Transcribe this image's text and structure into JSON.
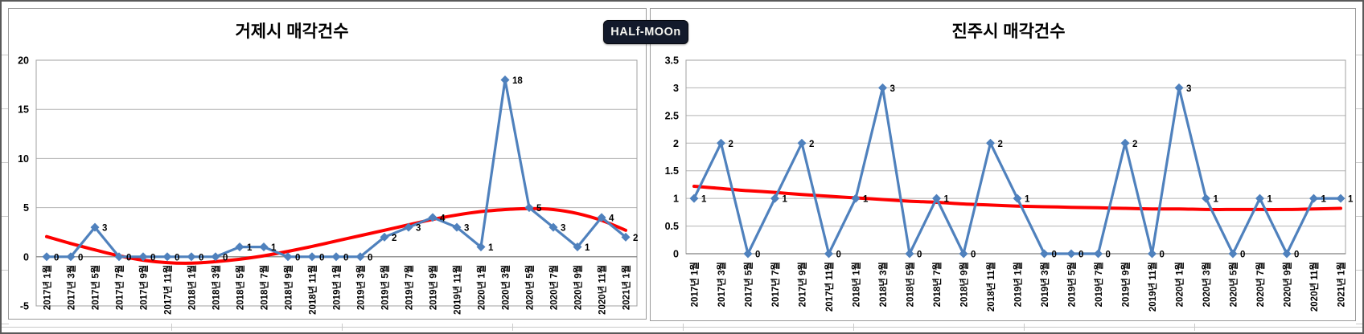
{
  "badge": {
    "label": "HALf-MOOn"
  },
  "chart_data": [
    {
      "type": "line",
      "title": "거제시 매각건수",
      "categories": [
        "2017년 1월",
        "2017년 3월",
        "2017년 5월",
        "2017년 7월",
        "2017년 9월",
        "2017년 11월",
        "2018년 1월",
        "2018년 3월",
        "2018년 5월",
        "2018년 7월",
        "2018년 9월",
        "2018년 11월",
        "2019년 1월",
        "2019년 3월",
        "2019년 5월",
        "2019년 7월",
        "2019년 9월",
        "2019년 11월",
        "2020년 1월",
        "2020년 3월",
        "2020년 5월",
        "2020년 7월",
        "2020년 9월",
        "2020년 11월",
        "2021년 1월"
      ],
      "series": [
        {
          "name": "매각건수",
          "values": [
            0,
            0,
            3,
            0,
            0,
            0,
            0,
            0,
            1,
            1,
            0,
            0,
            0,
            0,
            2,
            3,
            4,
            3,
            1,
            18,
            5,
            3,
            1,
            4,
            2
          ]
        }
      ],
      "trendline": {
        "shape": "polynomial",
        "values": [
          2.05,
          1.35,
          0.7,
          0.1,
          -0.35,
          -0.6,
          -0.65,
          -0.5,
          -0.25,
          0.1,
          0.55,
          1.05,
          1.6,
          2.15,
          2.7,
          3.25,
          3.8,
          4.25,
          4.6,
          4.8,
          4.9,
          4.8,
          4.4,
          3.7,
          2.7
        ]
      },
      "ylim": [
        -5,
        20
      ],
      "ytick_step": 5,
      "ytick_labels": [
        "20",
        "15",
        "10",
        "5",
        "0",
        "-5"
      ],
      "xlabel": "",
      "ylabel": "",
      "grid": true,
      "legend": "none",
      "x_label_rotation": 90,
      "data_labels": true,
      "colors": {
        "series": "#4F81BD",
        "trend": "#FE0000",
        "grid": "#b3b3b3",
        "axis": "#808080",
        "border": "#a0a0a0",
        "text": "#000000"
      }
    },
    {
      "type": "line",
      "title": "진주시 매각건수",
      "categories": [
        "2017년 1월",
        "2017년 3월",
        "2017년 5월",
        "2017년 7월",
        "2017년 9월",
        "2017년 11월",
        "2018년 1월",
        "2018년 3월",
        "2018년 5월",
        "2018년 7월",
        "2018년 9월",
        "2018년 11월",
        "2019년 1월",
        "2019년 3월",
        "2019년 5월",
        "2019년 7월",
        "2019년 9월",
        "2019년 11월",
        "2020년 1월",
        "2020년 3월",
        "2020년 5월",
        "2020년 7월",
        "2020년 9월",
        "2020년 11월",
        "2021년 1월"
      ],
      "series": [
        {
          "name": "매각건수",
          "values": [
            1,
            2,
            0,
            1,
            2,
            0,
            1,
            3,
            0,
            1,
            0,
            2,
            1,
            0,
            0,
            0,
            2,
            0,
            3,
            1,
            0,
            1,
            0,
            1,
            1
          ]
        }
      ],
      "trendline": {
        "shape": "polynomial",
        "values": [
          1.22,
          1.18,
          1.14,
          1.11,
          1.07,
          1.04,
          1.01,
          0.98,
          0.95,
          0.93,
          0.9,
          0.88,
          0.86,
          0.85,
          0.84,
          0.83,
          0.82,
          0.81,
          0.81,
          0.8,
          0.8,
          0.8,
          0.8,
          0.81,
          0.82
        ]
      },
      "ylim": [
        0,
        3.5
      ],
      "ytick_step": 0.5,
      "ytick_labels": [
        "3.5",
        "3",
        "2.5",
        "2",
        "1.5",
        "1",
        "0.5",
        "0"
      ],
      "xlabel": "",
      "ylabel": "",
      "grid": true,
      "legend": "none",
      "x_label_rotation": 90,
      "data_labels": true,
      "colors": {
        "series": "#4F81BD",
        "trend": "#FE0000",
        "grid": "#b3b3b3",
        "axis": "#808080",
        "border": "#a0a0a0",
        "text": "#000000"
      }
    }
  ]
}
